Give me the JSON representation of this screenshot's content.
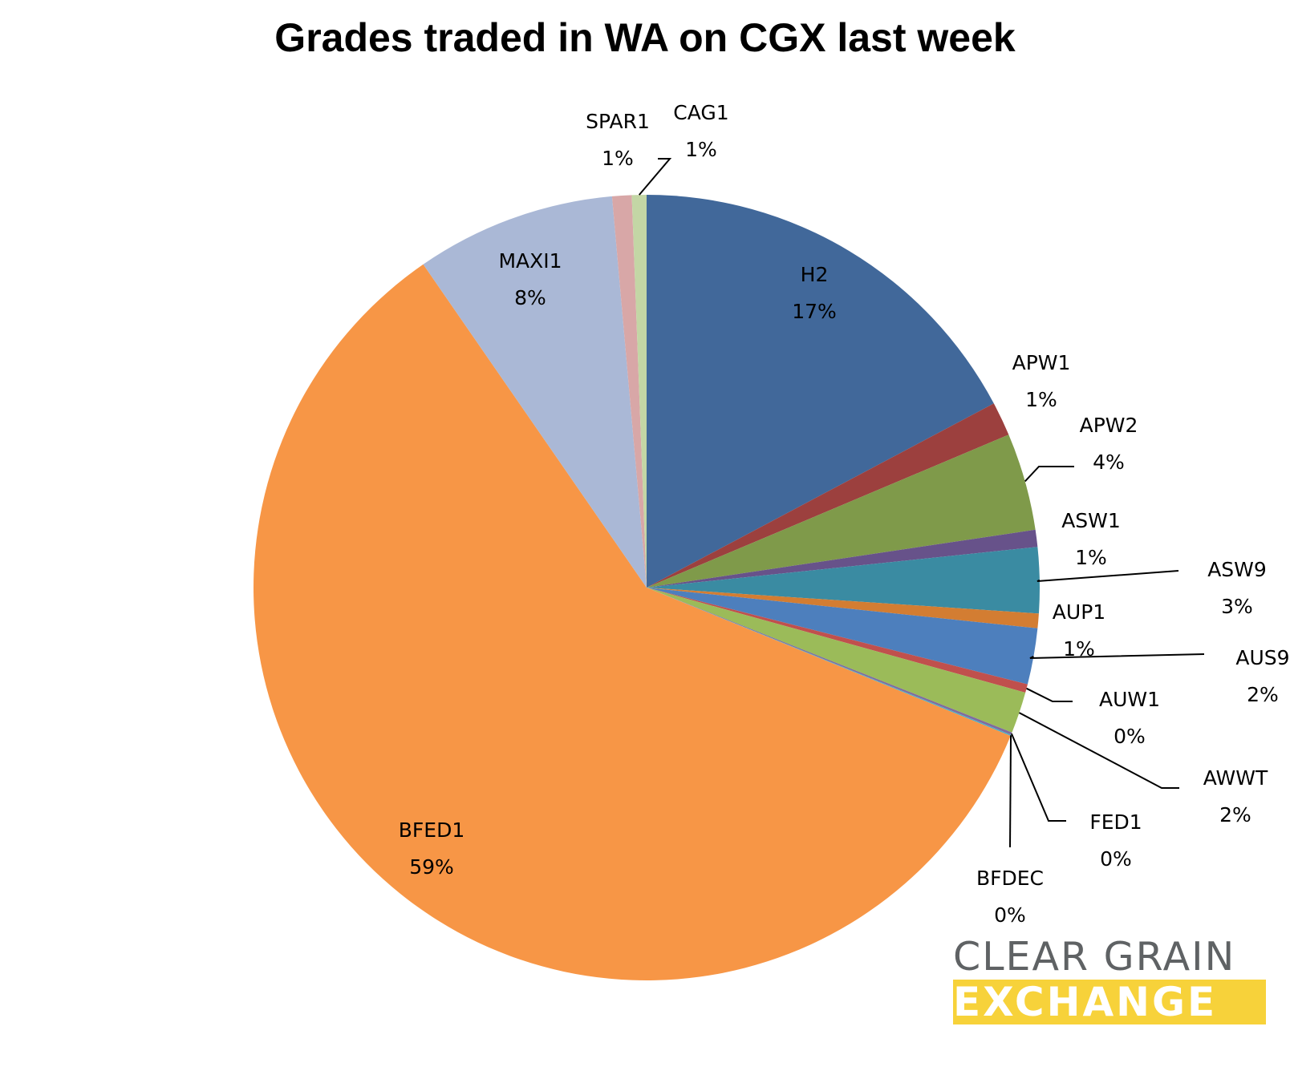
{
  "chart_data": {
    "type": "pie",
    "title": "Grades traded in WA on CGX last week",
    "slices": [
      {
        "label": "H2",
        "pct_label": "17%",
        "value": 17.2,
        "color": "#41689a"
      },
      {
        "label": "APW1",
        "pct_label": "1%",
        "value": 1.4,
        "color": "#9c403e"
      },
      {
        "label": "APW2",
        "pct_label": "4%",
        "value": 4.0,
        "color": "#7f9a4a"
      },
      {
        "label": "ASW1",
        "pct_label": "1%",
        "value": 0.7,
        "color": "#67528a"
      },
      {
        "label": "ASW9",
        "pct_label": "3%",
        "value": 2.7,
        "color": "#3a8ba2"
      },
      {
        "label": "AUP1",
        "pct_label": "1%",
        "value": 0.6,
        "color": "#d37d32"
      },
      {
        "label": "AUS9",
        "pct_label": "2%",
        "value": 2.3,
        "color": "#4d7fbd"
      },
      {
        "label": "AUW1",
        "pct_label": "0%",
        "value": 0.35,
        "color": "#c0504d"
      },
      {
        "label": "AWWT",
        "pct_label": "2%",
        "value": 1.7,
        "color": "#9bbb59"
      },
      {
        "label": "FED1",
        "pct_label": "0%",
        "value": 0.1,
        "color": "#7f6b9e"
      },
      {
        "label": "BFDEC",
        "pct_label": "0%",
        "value": 0.05,
        "color": "#4bacc6"
      },
      {
        "label": "BFED1",
        "pct_label": "59%",
        "value": 59.1,
        "color": "#f79646"
      },
      {
        "label": "MAXI1",
        "pct_label": "8%",
        "value": 8.2,
        "color": "#aab8d6"
      },
      {
        "label": "SPAR1",
        "pct_label": "1%",
        "value": 0.8,
        "color": "#d8a7a7"
      },
      {
        "label": "CAG1",
        "pct_label": "1%",
        "value": 0.6,
        "color": "#c3d6a5"
      }
    ]
  },
  "logo": {
    "line1": "CLEAR GRAIN",
    "line2": "EXCHANGE"
  }
}
